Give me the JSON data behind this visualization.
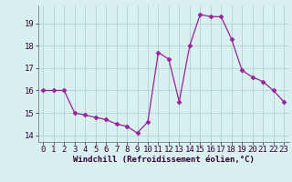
{
  "x": [
    0,
    1,
    2,
    3,
    4,
    5,
    6,
    7,
    8,
    9,
    10,
    11,
    12,
    13,
    14,
    15,
    16,
    17,
    18,
    19,
    20,
    21,
    22,
    23
  ],
  "y": [
    16.0,
    16.0,
    16.0,
    15.0,
    14.9,
    14.8,
    14.7,
    14.5,
    14.4,
    14.1,
    14.6,
    17.7,
    17.4,
    15.5,
    18.0,
    19.4,
    19.3,
    19.3,
    18.3,
    16.9,
    16.6,
    16.4,
    16.0,
    15.5
  ],
  "line_color": "#992299",
  "marker": "D",
  "marker_size": 2.5,
  "bg_color": "#d8f0f0",
  "grid_color": "#aacccc",
  "xlabel": "Windchill (Refroidissement éolien,°C)",
  "xlabel_fontsize": 6.5,
  "tick_fontsize": 6.5,
  "ylim": [
    13.7,
    19.8
  ],
  "yticks": [
    14,
    15,
    16,
    17,
    18,
    19
  ],
  "xticks": [
    0,
    1,
    2,
    3,
    4,
    5,
    6,
    7,
    8,
    9,
    10,
    11,
    12,
    13,
    14,
    15,
    16,
    17,
    18,
    19,
    20,
    21,
    22,
    23
  ],
  "xlim": [
    -0.5,
    23.5
  ]
}
